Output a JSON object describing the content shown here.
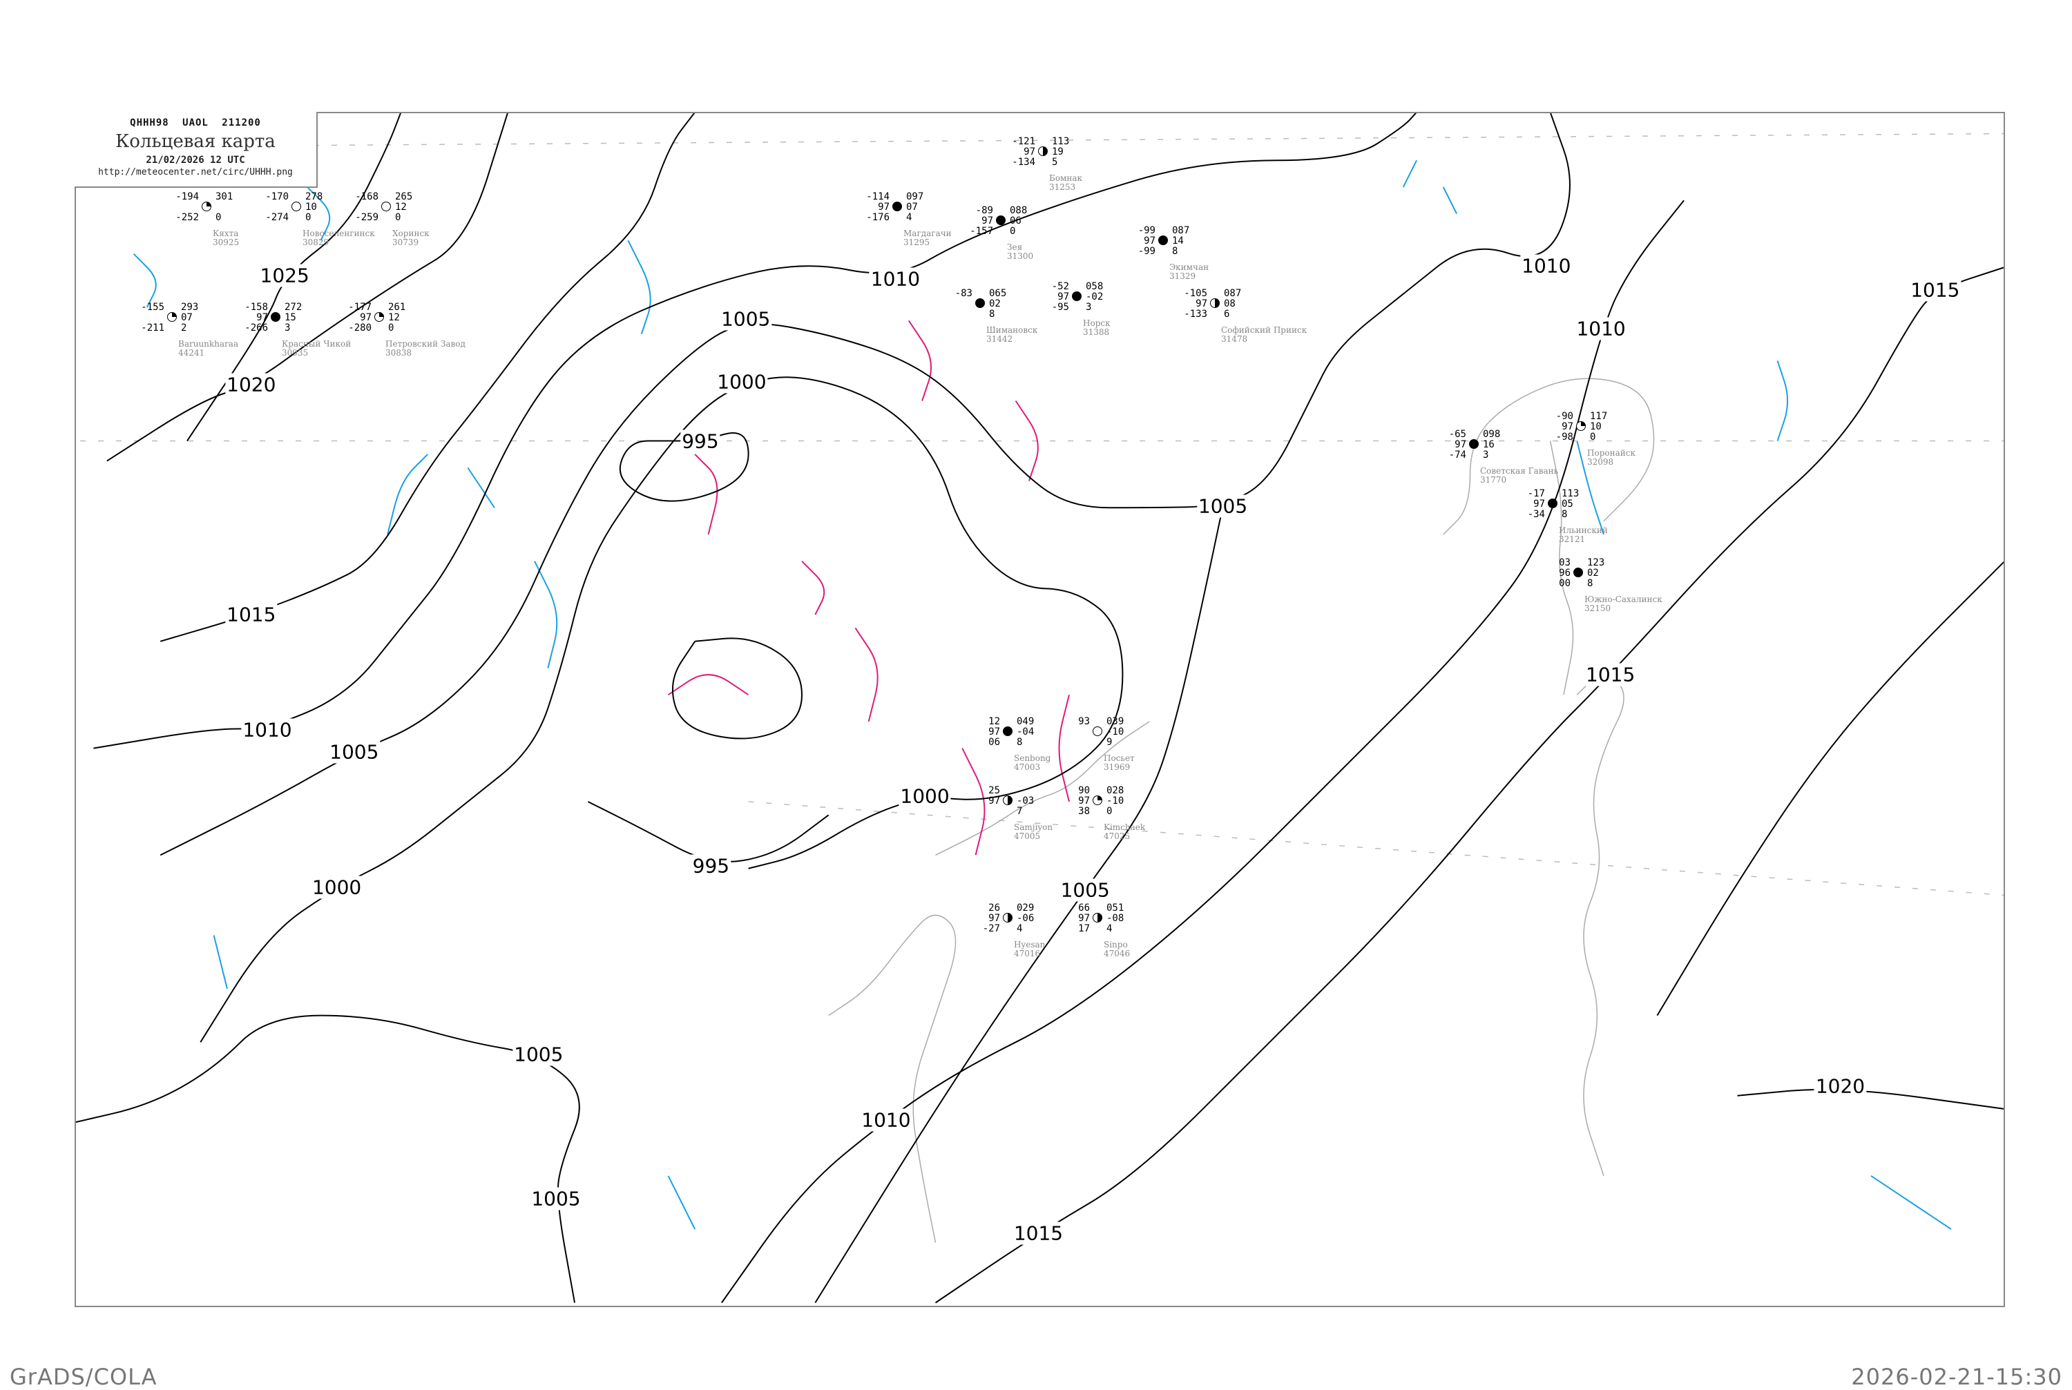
{
  "header": {
    "code_line": "QHHH98   UAOL   211200",
    "title": "Кольцевая карта",
    "datetime": "21/02/2026 12 UTC",
    "url": "http://meteocenter.net/circ/UHHH.png"
  },
  "footer": {
    "left": "GrADS/COLA",
    "right": "2026-02-21-15:30"
  },
  "colors": {
    "isobar": "#000000",
    "isotherm_zero": "#e0197d",
    "isotherm": "#1aa0e6",
    "coast": "#aaaaaa",
    "station_name": "#888888"
  },
  "isobar_labels": [
    "1025",
    "1020",
    "1015",
    "1010",
    "1005",
    "1000",
    "995",
    "1000",
    "995",
    "1010",
    "1005",
    "1005",
    "1005",
    "1000",
    "1005",
    "1010",
    "1015",
    "1010",
    "1010",
    "1015",
    "1015",
    "1020",
    "1005"
  ],
  "stations": [
    {
      "name": "Бомнак",
      "id": "31253",
      "left": [
        "-121",
        "97",
        "-134"
      ],
      "right": [
        "113",
        "19",
        "5"
      ],
      "cover": "half"
    },
    {
      "name": "Магдагачи",
      "id": "31295",
      "left": [
        "-114",
        "97",
        "-176"
      ],
      "right": [
        "097",
        "07",
        "4"
      ],
      "cover": "full"
    },
    {
      "name": "Зея",
      "id": "31300",
      "left": [
        "-89",
        "97",
        "-157"
      ],
      "right": [
        "088",
        "06",
        "0"
      ],
      "cover": "full"
    },
    {
      "name": "Норск",
      "id": "31388",
      "left": [
        "-52",
        "97",
        "-95"
      ],
      "right": [
        "058",
        "-02",
        "3"
      ],
      "cover": "full"
    },
    {
      "name": "Экимчан",
      "id": "31329",
      "left": [
        "-99",
        "97",
        "-99"
      ],
      "right": [
        "087",
        "14",
        "8"
      ],
      "cover": "full"
    },
    {
      "name": "Софийский Прииск",
      "id": "31478",
      "left": [
        "-105",
        "97",
        "-133"
      ],
      "right": [
        "087",
        "08",
        "6"
      ],
      "cover": "half"
    },
    {
      "name": "Шимановск",
      "id": "31442",
      "left": [
        "-83",
        "",
        ""
      ],
      "right": [
        "065",
        "02",
        "8"
      ],
      "cover": "full"
    },
    {
      "name": "Советская Гавань",
      "id": "31770",
      "left": [
        "-65",
        "97",
        "-74"
      ],
      "right": [
        "098",
        "16",
        "3"
      ],
      "cover": "full"
    },
    {
      "name": "Поронайск",
      "id": "32098",
      "left": [
        "-90",
        "97",
        "-98"
      ],
      "right": [
        "117",
        "10",
        "0"
      ],
      "cover": "quarter"
    },
    {
      "name": "Ильинский",
      "id": "32121",
      "left": [
        "-17",
        "97",
        "-34"
      ],
      "right": [
        "113",
        "05",
        "8"
      ],
      "cover": "full"
    },
    {
      "name": "Южно-Сахалинск",
      "id": "32150",
      "left": [
        "03",
        "96",
        "00"
      ],
      "right": [
        "123",
        "02",
        "8"
      ],
      "cover": "full"
    },
    {
      "name": "Кяхта",
      "id": "30925",
      "left": [
        "-194",
        "",
        "-252"
      ],
      "right": [
        "301",
        "",
        "0"
      ],
      "cover": "quarter"
    },
    {
      "name": "Новоселенгинск",
      "id": "30829",
      "left": [
        "-170",
        "",
        "-274"
      ],
      "right": [
        "278",
        "10",
        "0"
      ],
      "cover": "empty"
    },
    {
      "name": "Красный Чикой",
      "id": "30935",
      "left": [
        "-158",
        "97",
        "-266"
      ],
      "right": [
        "272",
        "15",
        "3"
      ],
      "cover": "full"
    },
    {
      "name": "Петровский Завод",
      "id": "30838",
      "left": [
        "-177",
        "97",
        "-280"
      ],
      "right": [
        "261",
        "12",
        "0"
      ],
      "cover": "quarter"
    },
    {
      "name": "Хоринск",
      "id": "30739",
      "left": [
        "-168",
        "",
        "-259"
      ],
      "right": [
        "265",
        "12",
        "0"
      ],
      "cover": "empty"
    },
    {
      "name": "Baruunkharaa",
      "id": "44241",
      "left": [
        "-155",
        "",
        "-211"
      ],
      "right": [
        "293",
        "07",
        "2"
      ],
      "cover": "quarter"
    },
    {
      "name": "Senbong",
      "id": "47003",
      "left": [
        "12",
        "97",
        "06"
      ],
      "right": [
        "049",
        "-04",
        "8"
      ],
      "cover": "full"
    },
    {
      "name": "Посьет",
      "id": "31969",
      "left": [
        "93",
        "",
        ""
      ],
      "right": [
        "039",
        "-10",
        "9"
      ],
      "cover": "empty"
    },
    {
      "name": "Samjiyon",
      "id": "47005",
      "left": [
        "25",
        "97",
        ""
      ],
      "right": [
        "",
        "-03",
        "7"
      ],
      "cover": "half"
    },
    {
      "name": "Hyesan",
      "id": "47016",
      "left": [
        "26",
        "97",
        "-27"
      ],
      "right": [
        "029",
        "-06",
        "4"
      ],
      "cover": "half"
    },
    {
      "name": "Kimchaek",
      "id": "47025",
      "left": [
        "90",
        "97",
        "38"
      ],
      "right": [
        "028",
        "-10",
        "0"
      ],
      "cover": "quarter"
    },
    {
      "name": "Sinpo",
      "id": "47046",
      "left": [
        "66",
        "97",
        "17"
      ],
      "right": [
        "051",
        "-08",
        "4"
      ],
      "cover": "half"
    }
  ]
}
